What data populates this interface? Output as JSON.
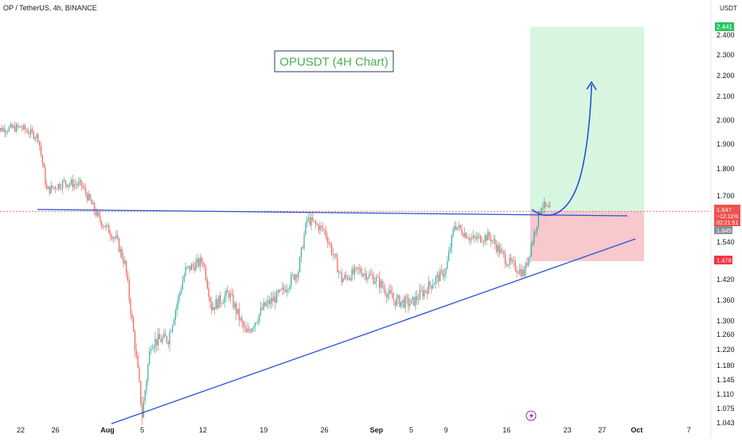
{
  "header": {
    "symbol_line": "OP / TetherUS, 4h, BINANCE",
    "currency": "USDT"
  },
  "annotation": {
    "title": "OPUSDT (4H Chart)"
  },
  "chart_data": {
    "type": "candlestick",
    "title": "OPUSDT (4H Chart)",
    "y_axis": {
      "ticks": [
        "2.400",
        "2.300",
        "2.200",
        "2.100",
        "2.000",
        "1.900",
        "1.800",
        "1.700",
        "1.540",
        "1.420",
        "1.360",
        "1.300",
        "1.260",
        "1.220",
        "1.180",
        "1.145",
        "1.110",
        "1.075",
        "1.043"
      ],
      "ylim": [
        1.043,
        2.45
      ]
    },
    "x_axis": {
      "ticks": [
        "22",
        "26",
        "Aug",
        "5",
        "12",
        "19",
        "26",
        "Sep",
        "5",
        "9",
        "16",
        "23",
        "27",
        "Oct",
        "7"
      ]
    },
    "price_labels": {
      "target": "2.441",
      "current": "1.647",
      "change": "−12.11%",
      "countdown": "02:21:51",
      "level": "1.645",
      "stop": "1.479"
    },
    "series_path": [
      [
        "Jul 19",
        1.96
      ],
      [
        "Jul 22",
        1.97
      ],
      [
        "Jul 24",
        1.93
      ],
      [
        "Jul 25",
        1.72
      ],
      [
        "Jul 27",
        1.75
      ],
      [
        "Jul 29",
        1.74
      ],
      [
        "Jul 31",
        1.62
      ],
      [
        "Aug 2",
        1.55
      ],
      [
        "Aug 3",
        1.47
      ],
      [
        "Aug 5",
        1.06
      ],
      [
        "Aug 6",
        1.24
      ],
      [
        "Aug 8",
        1.25
      ],
      [
        "Aug 10",
        1.45
      ],
      [
        "Aug 12",
        1.48
      ],
      [
        "Aug 13",
        1.34
      ],
      [
        "Aug 15",
        1.38
      ],
      [
        "Aug 17",
        1.26
      ],
      [
        "Aug 19",
        1.34
      ],
      [
        "Aug 21",
        1.38
      ],
      [
        "Aug 23",
        1.45
      ],
      [
        "Aug 24",
        1.62
      ],
      [
        "Aug 26",
        1.58
      ],
      [
        "Aug 28",
        1.42
      ],
      [
        "Aug 30",
        1.45
      ],
      [
        "Sep 1",
        1.42
      ],
      [
        "Sep 3",
        1.36
      ],
      [
        "Sep 5",
        1.35
      ],
      [
        "Sep 7",
        1.4
      ],
      [
        "Sep 9",
        1.45
      ],
      [
        "Sep 10",
        1.6
      ],
      [
        "Sep 12",
        1.55
      ],
      [
        "Sep 14",
        1.56
      ],
      [
        "Sep 16",
        1.48
      ],
      [
        "Sep 18",
        1.44
      ],
      [
        "Sep 19",
        1.55
      ],
      [
        "Sep 20",
        1.67
      ],
      [
        "Sep 21",
        1.647
      ]
    ],
    "drawings": {
      "resistance_line": "horizontal trendline near 1.62–1.64",
      "support_line": "rising trendline from Aug low to Sep 18",
      "target_zone_top": 2.441,
      "stop_zone_bottom": 1.479,
      "entry": 1.647
    },
    "colors": {
      "up": "#26a69a",
      "down": "#ef5350",
      "trendline": "#2453d6",
      "target_zone": "#d7f5df",
      "stop_zone": "#f8c9cc",
      "title_text": "#4caf50",
      "title_border": "#2b3b55"
    }
  }
}
